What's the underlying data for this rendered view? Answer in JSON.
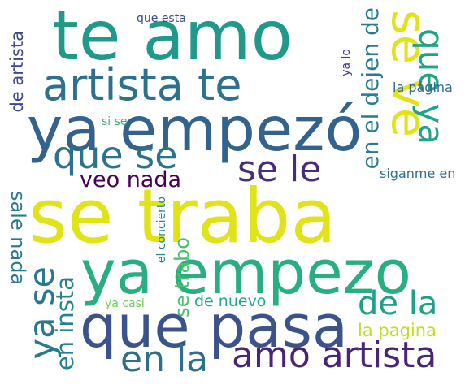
{
  "words": [
    {
      "text": "se traba",
      "color": "#dfe318",
      "orientation": "horizontal"
    },
    {
      "text": "te amo",
      "color": "#1f9a8a",
      "orientation": "horizontal"
    },
    {
      "text": "ya empezó",
      "color": "#33638d",
      "orientation": "horizontal"
    },
    {
      "text": "ya empezo",
      "color": "#29af7f",
      "orientation": "horizontal"
    },
    {
      "text": "que pasa",
      "color": "#3b528b",
      "orientation": "horizontal"
    },
    {
      "text": "artista te",
      "color": "#2c718e",
      "orientation": "horizontal"
    },
    {
      "text": "se ve",
      "color": "#dfe318",
      "orientation": "vertical"
    },
    {
      "text": "que se",
      "color": "#2c728e",
      "orientation": "horizontal"
    },
    {
      "text": "amo artista",
      "color": "#482677",
      "orientation": "horizontal"
    },
    {
      "text": "en la",
      "color": "#2d708e",
      "orientation": "horizontal"
    },
    {
      "text": "se le",
      "color": "#472d7b",
      "orientation": "horizontal"
    },
    {
      "text": "de la",
      "color": "#1fa187",
      "orientation": "horizontal"
    },
    {
      "text": "que ya",
      "color": "#20a386",
      "orientation": "vertical"
    },
    {
      "text": "ya se",
      "color": "#2a788e",
      "orientation": "vertical-up"
    },
    {
      "text": "veo nada",
      "color": "#440154",
      "orientation": "horizontal"
    },
    {
      "text": "en el dejen de",
      "color": "#287c8e",
      "orientation": "vertical-up"
    },
    {
      "text": "en insta",
      "color": "#26828e",
      "orientation": "vertical-up"
    },
    {
      "text": "se trabo",
      "color": "#4ac16d",
      "orientation": "vertical-up"
    },
    {
      "text": "sale nada",
      "color": "#2a788e",
      "orientation": "vertical"
    },
    {
      "text": "la pagina",
      "color": "#bddf26",
      "orientation": "horizontal"
    },
    {
      "text": "de artista",
      "color": "#3e4989",
      "orientation": "vertical-up"
    },
    {
      "text": "de nuevo",
      "color": "#22a884",
      "orientation": "horizontal"
    },
    {
      "text": "siganme en",
      "color": "#2e6e8e",
      "orientation": "horizontal"
    },
    {
      "text": "la página",
      "color": "#31688e",
      "orientation": "horizontal"
    },
    {
      "text": "el concierto",
      "color": "#25838e",
      "orientation": "vertical-up"
    },
    {
      "text": "que esta",
      "color": "#3e4a89",
      "orientation": "horizontal"
    },
    {
      "text": "ya lo",
      "color": "#453781",
      "orientation": "vertical-up"
    },
    {
      "text": "si se",
      "color": "#35b779",
      "orientation": "horizontal"
    },
    {
      "text": "ya casi",
      "color": "#6ece58",
      "orientation": "horizontal"
    }
  ]
}
